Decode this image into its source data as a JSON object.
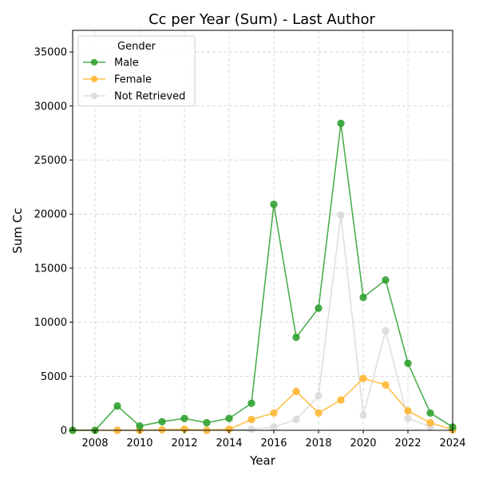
{
  "chart_data": {
    "type": "line",
    "title": "Cc per Year (Sum) - Last Author",
    "xlabel": "Year",
    "ylabel": "Sum Cc",
    "xlim": [
      2007,
      2024
    ],
    "ylim": [
      0,
      37000
    ],
    "xticks": [
      2008,
      2010,
      2012,
      2014,
      2016,
      2018,
      2020,
      2022,
      2024
    ],
    "yticks": [
      0,
      5000,
      10000,
      15000,
      20000,
      25000,
      30000,
      35000
    ],
    "grid": true,
    "legend": {
      "title": "Gender",
      "placement": "top-left"
    },
    "series": [
      {
        "name": "Male",
        "color": "#2ca02c",
        "x": [
          2007,
          2008,
          2009,
          2010,
          2011,
          2012,
          2013,
          2014,
          2015,
          2016,
          2017,
          2018,
          2019,
          2020,
          2021,
          2022,
          2023,
          2024
        ],
        "values": [
          0,
          0,
          2250,
          400,
          800,
          1100,
          700,
          1100,
          2500,
          20900,
          8600,
          11300,
          28400,
          12300,
          13900,
          6200,
          1600,
          300
        ]
      },
      {
        "name": "Female",
        "color": "#ffb52e",
        "x": [
          2007,
          2008,
          2009,
          2010,
          2011,
          2012,
          2013,
          2014,
          2015,
          2016,
          2017,
          2018,
          2019,
          2020,
          2021,
          2022,
          2023,
          2024
        ],
        "values": [
          0,
          0,
          0,
          0,
          50,
          100,
          0,
          100,
          1000,
          1600,
          3600,
          1600,
          2800,
          4800,
          4200,
          1800,
          700,
          50
        ]
      },
      {
        "name": "Not Retrieved",
        "color": "#d9d9d9",
        "x": [
          2009,
          2015,
          2016,
          2017,
          2018,
          2019,
          2020,
          2021,
          2022,
          2023
        ],
        "values": [
          0,
          100,
          300,
          1000,
          3200,
          19900,
          1400,
          9200,
          1100,
          350
        ]
      }
    ]
  }
}
